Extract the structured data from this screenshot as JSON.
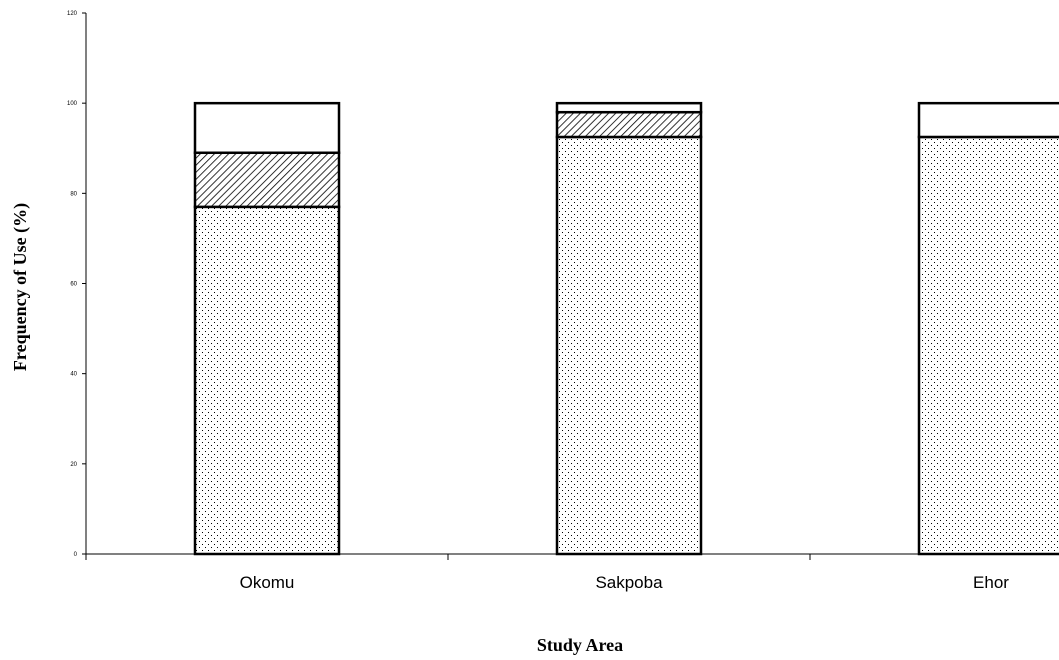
{
  "chart_data": {
    "type": "bar",
    "stacked": true,
    "title": "",
    "xlabel": "Study Area",
    "ylabel": "Frequency of Use (%)",
    "ylim": [
      0,
      120
    ],
    "yticks": [
      "0",
      "20",
      "40",
      "60",
      "80",
      "100",
      "120"
    ],
    "categories": [
      "Okomu",
      "Sakpoba",
      "Ehor"
    ],
    "series": [
      {
        "pattern": "dots",
        "values": [
          77,
          92.5,
          92.5
        ]
      },
      {
        "pattern": "diagonal-hatch",
        "values": [
          12,
          5.5,
          0
        ]
      },
      {
        "pattern": "blank",
        "values": [
          11,
          2,
          7.5
        ]
      }
    ],
    "grid": false,
    "legend": "none"
  }
}
